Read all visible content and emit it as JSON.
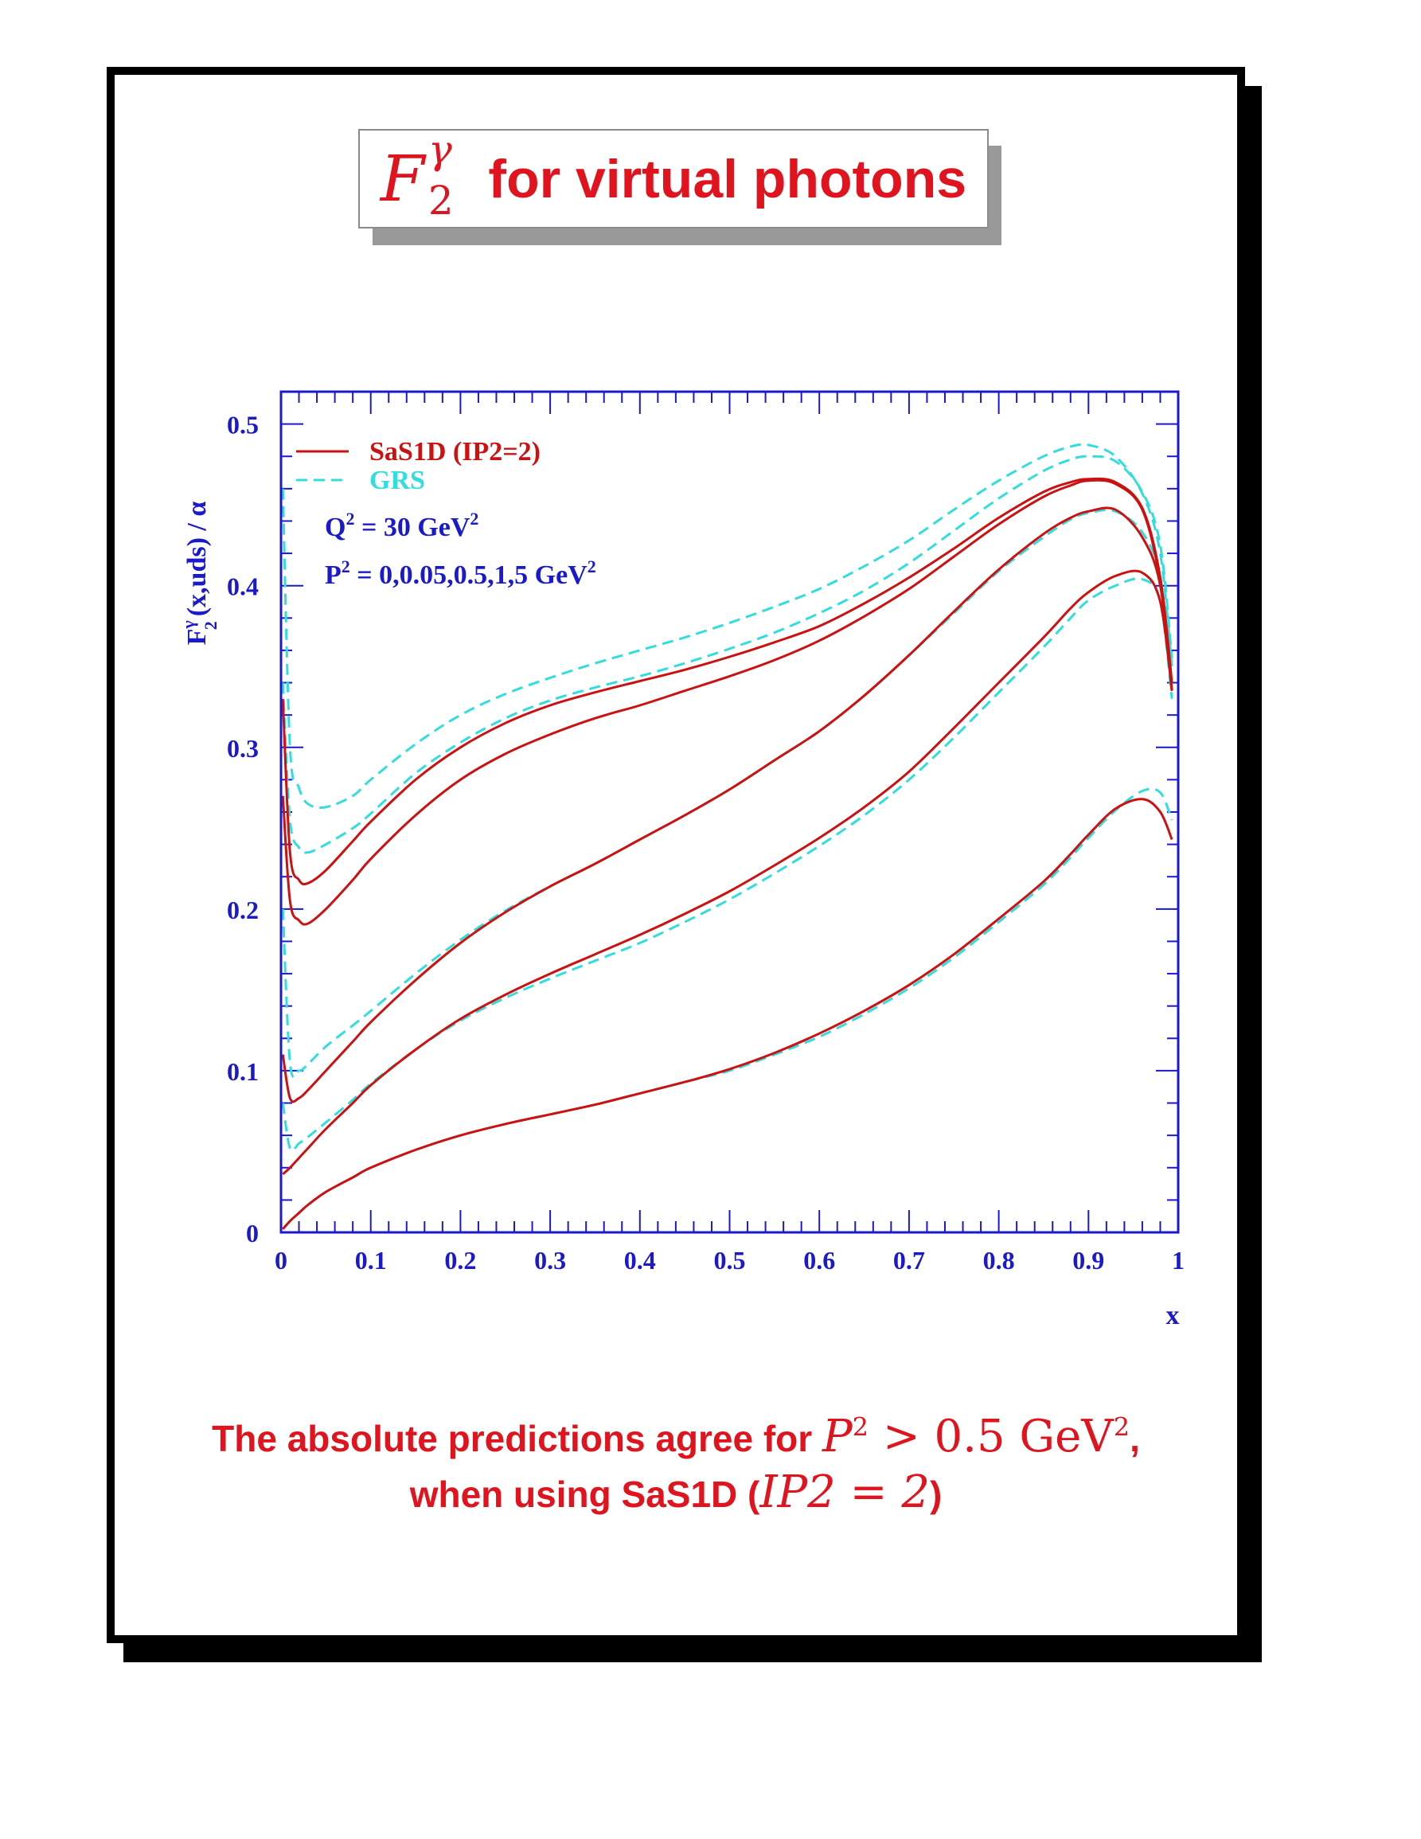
{
  "title": {
    "symbol": "F",
    "symbol_sup": "γ",
    "symbol_sub": "2",
    "text": "for virtual photons"
  },
  "caption": {
    "line1_text": "The absolute predictions agree for",
    "line1_math_var": "P",
    "line1_math_exp": "2",
    "line1_math_rest": " > 0.5 GeV",
    "line1_math_exp2": "2",
    "line1_end": ",",
    "line2_text": "when using SaS1D (",
    "line2_math": "IP2 = 2",
    "line2_end": ")"
  },
  "colors": {
    "axis": "#1a1acc",
    "sas": "#cc1111",
    "grs": "#33dddd",
    "caption": "#e0141e"
  },
  "chart_data": {
    "type": "line",
    "ylabel": "F₂^γ (x,uds) / α",
    "ylabel_parts": {
      "main": "F",
      "sup": "γ",
      "sub": "2",
      "rest": "(x,uds) / α"
    },
    "xlabel": "x",
    "xlim": [
      0,
      1
    ],
    "ylim": [
      0,
      0.52
    ],
    "x_ticks": [
      "0",
      "0.1",
      "0.2",
      "0.3",
      "0.4",
      "0.5",
      "0.6",
      "0.7",
      "0.8",
      "0.9",
      "1"
    ],
    "x_tick_values": [
      0,
      0.1,
      0.2,
      0.3,
      0.4,
      0.5,
      0.6,
      0.7,
      0.8,
      0.9,
      1
    ],
    "y_ticks": [
      "0",
      "0.1",
      "0.2",
      "0.3",
      "0.4",
      "0.5"
    ],
    "y_tick_values": [
      0,
      0.1,
      0.2,
      0.3,
      0.4,
      0.5
    ],
    "legend_position": "top-left",
    "legend": [
      {
        "label": "SaS1D (IP2=2)",
        "style": "solid",
        "color": "#cc1111"
      },
      {
        "label": "GRS",
        "style": "dashed",
        "color": "#33dddd"
      }
    ],
    "annotations": [
      {
        "main": "Q",
        "sup": "2",
        "rest": " = 30 GeV",
        "sup2": "2"
      },
      {
        "main": "P",
        "sup": "2",
        "rest": " = 0,0.05,0.5,1,5 GeV",
        "sup2": "2"
      }
    ],
    "series": [
      {
        "group": "GRS",
        "P2": "0",
        "x": [
          0.002,
          0.01,
          0.02,
          0.03,
          0.05,
          0.08,
          0.1,
          0.15,
          0.2,
          0.25,
          0.3,
          0.35,
          0.4,
          0.45,
          0.5,
          0.55,
          0.6,
          0.65,
          0.7,
          0.75,
          0.8,
          0.85,
          0.88,
          0.9,
          0.93,
          0.96,
          0.98,
          0.993
        ],
        "y": [
          0.46,
          0.3,
          0.275,
          0.265,
          0.263,
          0.27,
          0.28,
          0.302,
          0.32,
          0.333,
          0.343,
          0.352,
          0.36,
          0.368,
          0.377,
          0.387,
          0.398,
          0.412,
          0.428,
          0.447,
          0.465,
          0.48,
          0.486,
          0.487,
          0.48,
          0.457,
          0.42,
          0.35
        ]
      },
      {
        "group": "GRS",
        "P2": "0.05",
        "x": [
          0.002,
          0.01,
          0.02,
          0.03,
          0.05,
          0.08,
          0.1,
          0.15,
          0.2,
          0.25,
          0.3,
          0.35,
          0.4,
          0.45,
          0.5,
          0.55,
          0.6,
          0.65,
          0.7,
          0.75,
          0.8,
          0.85,
          0.88,
          0.9,
          0.93,
          0.96,
          0.98,
          0.993
        ],
        "y": [
          0.34,
          0.255,
          0.238,
          0.235,
          0.24,
          0.25,
          0.259,
          0.284,
          0.303,
          0.318,
          0.329,
          0.337,
          0.344,
          0.352,
          0.361,
          0.371,
          0.383,
          0.397,
          0.414,
          0.434,
          0.454,
          0.471,
          0.478,
          0.48,
          0.477,
          0.458,
          0.425,
          0.355
        ]
      },
      {
        "group": "GRS",
        "P2": "0.5",
        "x": [
          0.002,
          0.01,
          0.02,
          0.03,
          0.05,
          0.08,
          0.1,
          0.15,
          0.2,
          0.25,
          0.3,
          0.35,
          0.4,
          0.45,
          0.5,
          0.55,
          0.6,
          0.65,
          0.7,
          0.75,
          0.8,
          0.85,
          0.88,
          0.9,
          0.93,
          0.96,
          0.98,
          0.993
        ],
        "y": [
          0.2,
          0.105,
          0.1,
          0.104,
          0.115,
          0.128,
          0.137,
          0.16,
          0.181,
          0.199,
          0.214,
          0.228,
          0.243,
          0.258,
          0.274,
          0.292,
          0.31,
          0.332,
          0.357,
          0.383,
          0.409,
          0.43,
          0.441,
          0.445,
          0.446,
          0.433,
          0.405,
          0.34
        ]
      },
      {
        "group": "GRS",
        "P2": "1",
        "x": [
          0.002,
          0.01,
          0.02,
          0.03,
          0.05,
          0.08,
          0.1,
          0.15,
          0.2,
          0.25,
          0.3,
          0.35,
          0.4,
          0.45,
          0.5,
          0.55,
          0.6,
          0.65,
          0.7,
          0.75,
          0.8,
          0.85,
          0.88,
          0.9,
          0.93,
          0.96,
          0.98,
          0.993
        ],
        "y": [
          0.08,
          0.052,
          0.055,
          0.059,
          0.068,
          0.082,
          0.092,
          0.113,
          0.131,
          0.145,
          0.157,
          0.168,
          0.179,
          0.192,
          0.206,
          0.222,
          0.239,
          0.258,
          0.28,
          0.306,
          0.334,
          0.362,
          0.38,
          0.391,
          0.4,
          0.404,
          0.39,
          0.33
        ]
      },
      {
        "group": "GRS",
        "P2": "5",
        "x": [
          0.002,
          0.01,
          0.02,
          0.03,
          0.05,
          0.08,
          0.1,
          0.15,
          0.2,
          0.25,
          0.3,
          0.35,
          0.4,
          0.45,
          0.5,
          0.55,
          0.6,
          0.65,
          0.7,
          0.75,
          0.8,
          0.85,
          0.88,
          0.9,
          0.93,
          0.96,
          0.98,
          0.993
        ],
        "y": [
          0.002,
          0.007,
          0.012,
          0.017,
          0.025,
          0.034,
          0.04,
          0.051,
          0.06,
          0.067,
          0.073,
          0.079,
          0.086,
          0.093,
          0.1,
          0.11,
          0.121,
          0.135,
          0.151,
          0.17,
          0.192,
          0.215,
          0.232,
          0.244,
          0.261,
          0.273,
          0.272,
          0.255
        ]
      },
      {
        "group": "SaS1D",
        "P2": "0",
        "x": [
          0.002,
          0.01,
          0.02,
          0.03,
          0.05,
          0.08,
          0.1,
          0.15,
          0.2,
          0.25,
          0.3,
          0.35,
          0.4,
          0.45,
          0.5,
          0.55,
          0.6,
          0.65,
          0.7,
          0.75,
          0.8,
          0.85,
          0.88,
          0.9,
          0.93,
          0.96,
          0.98,
          0.993
        ],
        "y": [
          0.33,
          0.235,
          0.218,
          0.216,
          0.224,
          0.242,
          0.254,
          0.28,
          0.3,
          0.315,
          0.326,
          0.334,
          0.341,
          0.348,
          0.356,
          0.365,
          0.375,
          0.389,
          0.405,
          0.423,
          0.442,
          0.458,
          0.464,
          0.466,
          0.464,
          0.448,
          0.405,
          0.34
        ]
      },
      {
        "group": "SaS1D",
        "P2": "0.05",
        "x": [
          0.002,
          0.01,
          0.02,
          0.03,
          0.05,
          0.08,
          0.1,
          0.15,
          0.2,
          0.25,
          0.3,
          0.35,
          0.4,
          0.45,
          0.5,
          0.55,
          0.6,
          0.65,
          0.7,
          0.75,
          0.8,
          0.85,
          0.88,
          0.9,
          0.93,
          0.96,
          0.98,
          0.993
        ],
        "y": [
          0.27,
          0.205,
          0.193,
          0.191,
          0.2,
          0.218,
          0.231,
          0.258,
          0.28,
          0.296,
          0.308,
          0.318,
          0.326,
          0.335,
          0.344,
          0.354,
          0.366,
          0.381,
          0.398,
          0.418,
          0.438,
          0.455,
          0.462,
          0.465,
          0.463,
          0.447,
          0.402,
          0.335
        ]
      },
      {
        "group": "SaS1D",
        "P2": "0.5",
        "x": [
          0.002,
          0.01,
          0.02,
          0.03,
          0.05,
          0.08,
          0.1,
          0.15,
          0.2,
          0.25,
          0.3,
          0.35,
          0.4,
          0.45,
          0.5,
          0.55,
          0.6,
          0.65,
          0.7,
          0.75,
          0.8,
          0.85,
          0.88,
          0.9,
          0.93,
          0.96,
          0.98,
          0.993
        ],
        "y": [
          0.11,
          0.083,
          0.083,
          0.088,
          0.1,
          0.118,
          0.13,
          0.156,
          0.179,
          0.198,
          0.214,
          0.228,
          0.243,
          0.258,
          0.274,
          0.292,
          0.31,
          0.332,
          0.357,
          0.384,
          0.41,
          0.432,
          0.442,
          0.446,
          0.447,
          0.43,
          0.4,
          0.335
        ]
      },
      {
        "group": "SaS1D",
        "P2": "1",
        "x": [
          0.002,
          0.01,
          0.02,
          0.03,
          0.05,
          0.08,
          0.1,
          0.15,
          0.2,
          0.25,
          0.3,
          0.35,
          0.4,
          0.45,
          0.5,
          0.55,
          0.6,
          0.65,
          0.7,
          0.75,
          0.8,
          0.85,
          0.88,
          0.9,
          0.93,
          0.96,
          0.98,
          0.993
        ],
        "y": [
          0.036,
          0.04,
          0.046,
          0.052,
          0.064,
          0.08,
          0.091,
          0.113,
          0.132,
          0.147,
          0.16,
          0.172,
          0.184,
          0.197,
          0.211,
          0.227,
          0.244,
          0.263,
          0.285,
          0.312,
          0.34,
          0.368,
          0.386,
          0.396,
          0.406,
          0.408,
          0.39,
          0.335
        ]
      },
      {
        "group": "SaS1D",
        "P2": "5",
        "x": [
          0.002,
          0.01,
          0.02,
          0.03,
          0.05,
          0.08,
          0.1,
          0.15,
          0.2,
          0.25,
          0.3,
          0.35,
          0.4,
          0.45,
          0.5,
          0.55,
          0.6,
          0.65,
          0.7,
          0.75,
          0.8,
          0.85,
          0.88,
          0.9,
          0.93,
          0.96,
          0.98,
          0.993
        ],
        "y": [
          0.002,
          0.007,
          0.012,
          0.017,
          0.025,
          0.034,
          0.04,
          0.051,
          0.06,
          0.067,
          0.073,
          0.079,
          0.086,
          0.093,
          0.101,
          0.111,
          0.123,
          0.137,
          0.153,
          0.172,
          0.194,
          0.217,
          0.234,
          0.246,
          0.262,
          0.268,
          0.26,
          0.243
        ]
      }
    ]
  }
}
